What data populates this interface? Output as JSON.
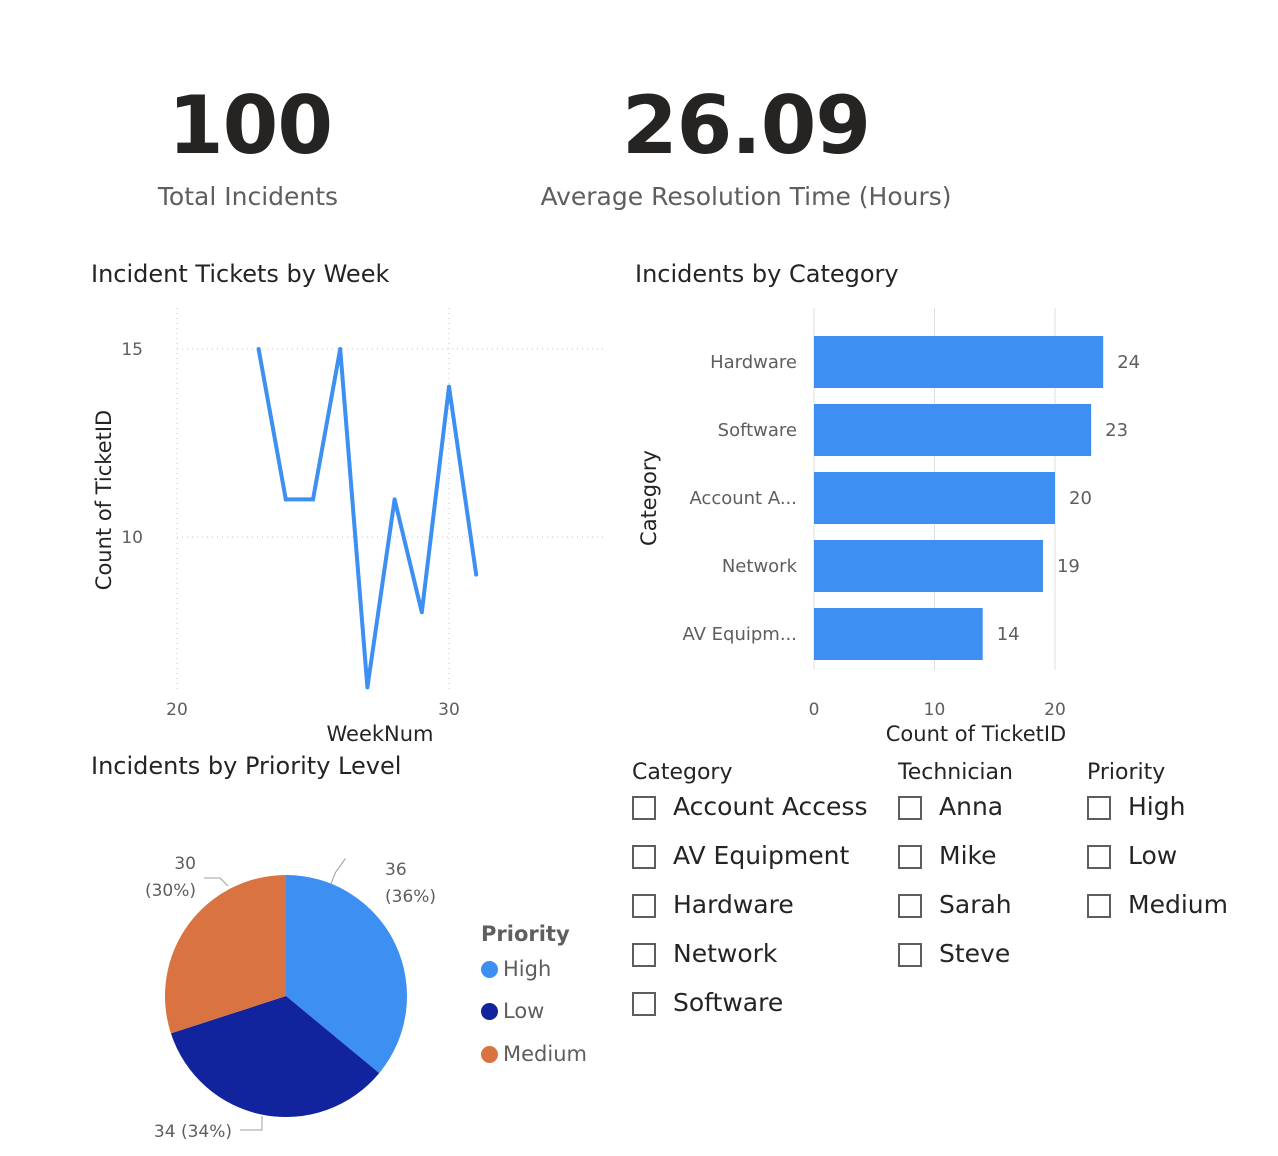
{
  "kpis": [
    {
      "value": "100",
      "label": "Total Incidents"
    },
    {
      "value": "26.09",
      "label": "Average Resolution Time (Hours)"
    }
  ],
  "colors": {
    "primary": "#3D8FF2",
    "high": "#3D8FF2",
    "low": "#12239E",
    "medium": "#D97442"
  },
  "line_visual": {
    "title": "Incident Tickets by Week",
    "chart_data": {
      "type": "line",
      "xlabel": "WeekNum",
      "ylabel": "Count of TicketID",
      "xlim": [
        20,
        32
      ],
      "ylim": [
        6,
        16
      ],
      "x_ticks": [
        "20",
        "30"
      ],
      "y_ticks": [
        "10",
        "15"
      ],
      "grid": true,
      "series": [
        {
          "x": [
            23,
            24,
            25,
            26,
            27,
            28,
            29,
            30,
            31
          ],
          "y": [
            15,
            11,
            11,
            15,
            6,
            11,
            8,
            14,
            9
          ]
        }
      ]
    }
  },
  "bar_visual": {
    "title": "Incidents by Category",
    "chart_data": {
      "type": "bar",
      "orientation": "horizontal",
      "categories": [
        "Hardware",
        "Software",
        "Account A...",
        "Network",
        "AV Equipm..."
      ],
      "values": [
        24,
        23,
        20,
        19,
        14
      ],
      "xlabel": "Count of TicketID",
      "ylabel": "Category",
      "xlim": [
        0,
        24
      ],
      "x_ticks": [
        "0",
        "10",
        "20"
      ],
      "grid": true
    }
  },
  "pie_visual": {
    "title": "Incidents by Priority Level",
    "legend_title": "Priority",
    "chart_data": {
      "type": "pie",
      "slices": [
        {
          "label": "High",
          "value": 36,
          "data_label_1": "36",
          "data_label_2": "(36%)"
        },
        {
          "label": "Low",
          "value": 34,
          "data_label_1": "34 (34%)",
          "data_label_2": ""
        },
        {
          "label": "Medium",
          "value": 30,
          "data_label_1": "30",
          "data_label_2": "(30%)"
        }
      ]
    }
  },
  "slicers": {
    "category": {
      "header": "Category",
      "items": [
        "Account Access",
        "AV Equipment",
        "Hardware",
        "Network",
        "Software"
      ]
    },
    "technician": {
      "header": "Technician",
      "items": [
        "Anna",
        "Mike",
        "Sarah",
        "Steve"
      ]
    },
    "priority": {
      "header": "Priority",
      "items": [
        "High",
        "Low",
        "Medium"
      ]
    }
  }
}
